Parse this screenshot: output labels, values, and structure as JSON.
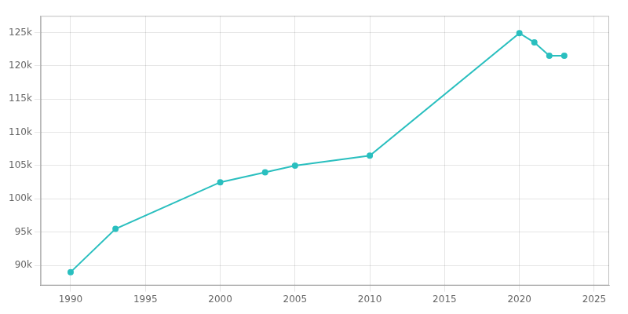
{
  "chart_data": {
    "type": "line",
    "x": [
      1990,
      1993,
      2000,
      2003,
      2005,
      2010,
      2020,
      2021,
      2022,
      2023
    ],
    "values": [
      89000,
      95500,
      102500,
      104000,
      105000,
      106500,
      124900,
      123500,
      121500,
      121500
    ],
    "color": "#2abfbf",
    "marker": "circle",
    "xlim": [
      1988,
      2026
    ],
    "xticks": [
      1990,
      1995,
      2000,
      2005,
      2010,
      2015,
      2020,
      2025
    ],
    "ylim": [
      87000,
      127500
    ],
    "yticks": [
      {
        "value": 90000,
        "label": "90k"
      },
      {
        "value": 95000,
        "label": "95k"
      },
      {
        "value": 100000,
        "label": "100k"
      },
      {
        "value": 105000,
        "label": "105k"
      },
      {
        "value": 110000,
        "label": "110k"
      },
      {
        "value": 115000,
        "label": "115k"
      },
      {
        "value": 120000,
        "label": "120k"
      },
      {
        "value": 125000,
        "label": "125k"
      }
    ],
    "grid": true
  }
}
